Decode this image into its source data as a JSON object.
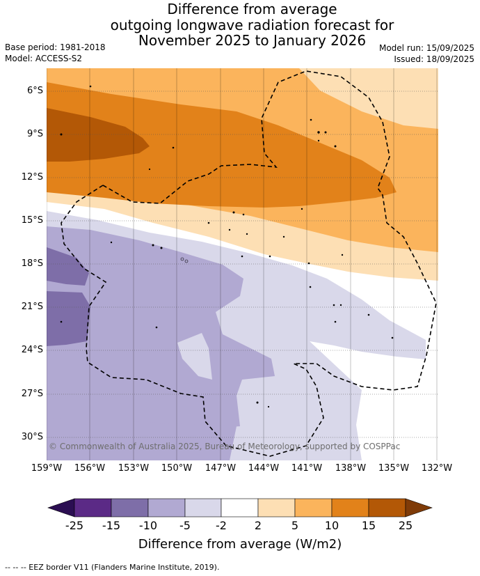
{
  "title": {
    "line1": "Difference from average",
    "line2": "outgoing longwave radiation forecast for",
    "line3": "November 2025 to January 2026"
  },
  "meta": {
    "base_period": "Base period: 1981-2018",
    "model": "Model: ACCESS-S2",
    "model_run": "Model run: 15/09/2025",
    "issued": "Issued: 18/09/2025"
  },
  "map": {
    "lon_range": [
      -159,
      -131.9
    ],
    "lat_range": [
      -31.4,
      -4.3
    ],
    "lat_ticks": [
      "6°S",
      "9°S",
      "12°S",
      "15°S",
      "18°S",
      "21°S",
      "24°S",
      "27°S",
      "30°S"
    ],
    "lon_ticks": [
      "159°W",
      "156°W",
      "153°W",
      "150°W",
      "147°W",
      "144°W",
      "141°W",
      "138°W",
      "135°W",
      "132°W"
    ],
    "copyright": "© Commonwealth of Australia 2025, Bureau of Meteorology, supported by COSPPac"
  },
  "colorbar": {
    "ticks": [
      "-25",
      "-15",
      "-10",
      "-5",
      "-2",
      "2",
      "5",
      "10",
      "15",
      "25"
    ],
    "colors": [
      "#2b0e52",
      "#5b2a86",
      "#7e6ea8",
      "#b1a9d2",
      "#d9d8ea",
      "#ffffff",
      "#fddfb4",
      "#fbb45c",
      "#e2821a",
      "#b35806",
      "#7f3b08"
    ],
    "label": "Difference from average (W/m2)"
  },
  "legend": {
    "text": "--  --  -- EEZ border V11 (Flanders Marine Institute, 2019)."
  }
}
